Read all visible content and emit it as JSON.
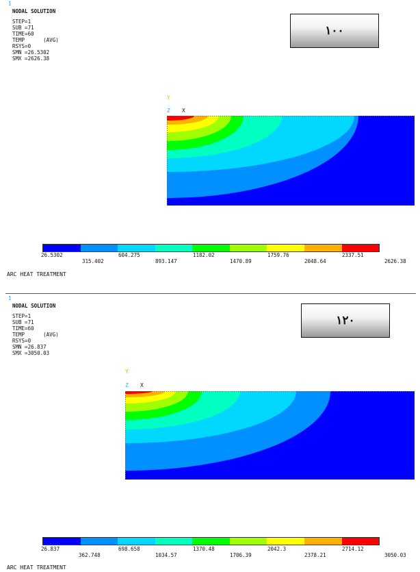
{
  "panels": [
    {
      "corner_mark": "1",
      "heading": "NODAL SOLUTION",
      "lines": [
        "STEP=1",
        "SUB =71",
        "TIME=60",
        "TEMP      (AVG)",
        "RSYS=0",
        "SMN =26.5302",
        "SMX =2626.38"
      ],
      "label": "١٠٠",
      "axis": {
        "y": "Y",
        "z": "Z",
        "x": "X"
      },
      "legend_row1": [
        "26.5302",
        "604.275",
        "1182.02",
        "1759.76",
        "2337.51"
      ],
      "legend_row2": [
        "315.402",
        "893.147",
        "1470.89",
        "2048.64",
        "2626.38"
      ],
      "footer": "ARC HEAT TREATMENT"
    },
    {
      "corner_mark": "1",
      "heading": "NODAL SOLUTION",
      "lines": [
        "STEP=1",
        "SUB =71",
        "TIME=60",
        "TEMP      (AVG)",
        "RSYS=0",
        "SMN =26.837",
        "SMX =3050.03"
      ],
      "label": "١٢٠",
      "axis": {
        "y": "Y",
        "z": "Z",
        "x": "X"
      },
      "legend_row1": [
        "26.837",
        "698.658",
        "1370.48",
        "2042.3",
        "2714.12"
      ],
      "legend_row2": [
        "362.748",
        "1034.57",
        "1706.39",
        "2378.21",
        "3050.03"
      ],
      "footer": "ARC HEAT TREATMENT"
    }
  ],
  "colormap": [
    "#0000ff",
    "#0090ff",
    "#00d8ff",
    "#00ffc0",
    "#00ff00",
    "#a0ff00",
    "#ffff00",
    "#ffb000",
    "#ff0000"
  ]
}
